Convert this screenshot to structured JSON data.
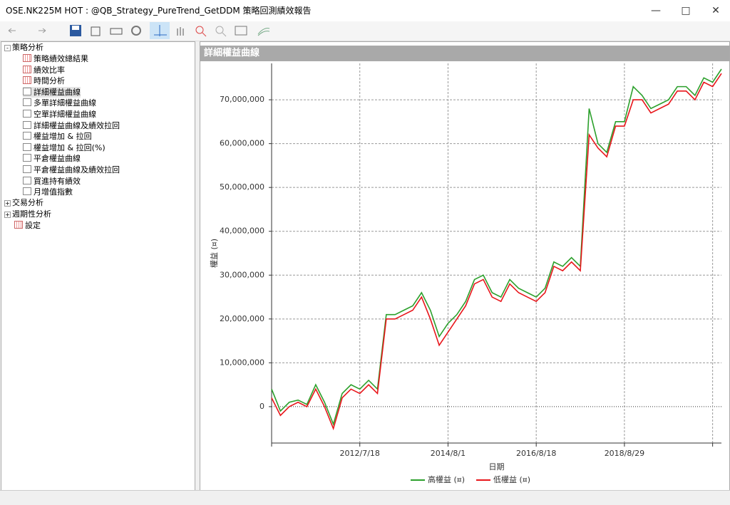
{
  "window": {
    "title": "OSE.NK225M HOT : @QB_Strategy_PureTrend_GetDDM 策略回測績效報告"
  },
  "tree": {
    "nodes": [
      {
        "label": "策略分析",
        "children": [
          "策略績效總結果",
          "績效比率",
          "時間分析",
          "詳細權益曲線",
          "多單詳細權益曲線",
          "空單詳細權益曲線",
          "詳細權益曲線及績效拉回",
          "權益增加 & 拉回",
          "權益增加 & 拉回(%)",
          "平倉權益曲線",
          "平倉權益曲線及績效拉回",
          "買進持有績效",
          "月增值指數"
        ]
      },
      {
        "label": "交易分析"
      },
      {
        "label": "週期性分析"
      },
      {
        "label": "設定"
      }
    ]
  },
  "panel": {
    "title": "詳細權益曲線"
  },
  "chart_data": {
    "type": "line",
    "x_label": "日期",
    "y_label": "權益 (¤)",
    "categories": [
      null,
      null,
      null,
      null,
      null,
      null,
      null,
      null,
      null,
      null,
      "2012/7/18",
      null,
      null,
      null,
      null,
      null,
      null,
      null,
      null,
      null,
      "2014/8/1",
      null,
      null,
      null,
      null,
      null,
      null,
      null,
      null,
      null,
      "2016/8/18",
      null,
      null,
      null,
      null,
      null,
      null,
      null,
      null,
      null,
      "2018/8/29",
      null,
      null,
      null,
      null,
      null,
      null,
      null,
      null,
      null,
      null,
      null
    ],
    "series": [
      {
        "name": "高權益 (¤)",
        "color": "#2ca02c",
        "values": [
          4000000,
          -1000000,
          1000000,
          1500000,
          500000,
          5000000,
          1000000,
          -4000000,
          3000000,
          5000000,
          4000000,
          6000000,
          4000000,
          21000000,
          21000000,
          22000000,
          23000000,
          26000000,
          22000000,
          16000000,
          19000000,
          21000000,
          24000000,
          29000000,
          30000000,
          26000000,
          25000000,
          29000000,
          27000000,
          26000000,
          25000000,
          27000000,
          33000000,
          32000000,
          34000000,
          32000000,
          68000000,
          60000000,
          58000000,
          65000000,
          65000000,
          73000000,
          71000000,
          68000000,
          69000000,
          70000000,
          73000000,
          73000000,
          71000000,
          75000000,
          74000000,
          77000000
        ]
      },
      {
        "name": "低權益 (¤)",
        "color": "#e8161b",
        "values": [
          2000000,
          -2000000,
          0,
          1000000,
          0,
          4000000,
          0,
          -5000000,
          2000000,
          4000000,
          3000000,
          5000000,
          3000000,
          20000000,
          20000000,
          21000000,
          22000000,
          25000000,
          20000000,
          14000000,
          17000000,
          20000000,
          23000000,
          28000000,
          29000000,
          25000000,
          24000000,
          28000000,
          26000000,
          25000000,
          24000000,
          26000000,
          32000000,
          31000000,
          33000000,
          31000000,
          62000000,
          59000000,
          57000000,
          64000000,
          64000000,
          70000000,
          70000000,
          67000000,
          68000000,
          69000000,
          72000000,
          72000000,
          70000000,
          74000000,
          73000000,
          76000000
        ]
      }
    ],
    "ylim": [
      -8300000,
      78300000
    ],
    "yticks": [
      0,
      {
        "value": 10000000,
        "label": "10,000,000"
      },
      {
        "value": 20000000,
        "label": "20,000,000"
      },
      {
        "value": 30000000,
        "label": "30,000,000"
      },
      {
        "value": 40000000,
        "label": "40,000,000"
      },
      {
        "value": 50000000,
        "label": "50,000,000"
      },
      {
        "value": 60000000,
        "label": "60,000,000"
      },
      {
        "value": 70000000,
        "label": "70,000,000"
      }
    ],
    "grid": true
  }
}
